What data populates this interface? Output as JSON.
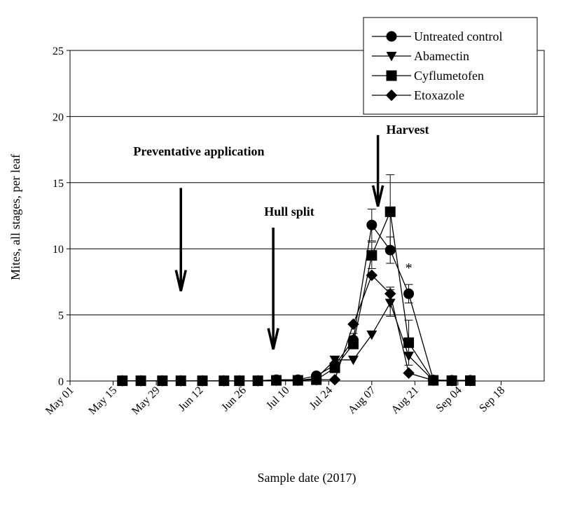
{
  "chart_data": {
    "type": "line",
    "xlabel": "Sample date (2017)",
    "ylabel": "Mites, all stages, per leaf",
    "ylim": [
      0,
      25
    ],
    "yticks": [
      0,
      5,
      10,
      15,
      20,
      25
    ],
    "xlim": [
      "2017-05-01",
      "2017-10-02"
    ],
    "xticks": [
      {
        "date": "2017-05-01",
        "label": "May 01"
      },
      {
        "date": "2017-05-15",
        "label": "May 15"
      },
      {
        "date": "2017-05-29",
        "label": "May 29"
      },
      {
        "date": "2017-06-12",
        "label": "Jun 12"
      },
      {
        "date": "2017-06-26",
        "label": "Jun 26"
      },
      {
        "date": "2017-07-10",
        "label": "Jul 10"
      },
      {
        "date": "2017-07-24",
        "label": "Jul 24"
      },
      {
        "date": "2017-08-07",
        "label": "Aug 07"
      },
      {
        "date": "2017-08-21",
        "label": "Aug 21"
      },
      {
        "date": "2017-09-04",
        "label": "Sep 04"
      },
      {
        "date": "2017-09-18",
        "label": "Sep 18"
      }
    ],
    "grid": "horizontal",
    "legend_position": "top-right",
    "series": [
      {
        "name": "Untreated control",
        "marker": "circle",
        "points": [
          {
            "x": "2017-05-18",
            "y": 0.02
          },
          {
            "x": "2017-05-24",
            "y": 0.02
          },
          {
            "x": "2017-05-31",
            "y": 0.02
          },
          {
            "x": "2017-06-06",
            "y": 0.02
          },
          {
            "x": "2017-06-13",
            "y": 0.02
          },
          {
            "x": "2017-06-20",
            "y": 0.02
          },
          {
            "x": "2017-06-25",
            "y": 0.02
          },
          {
            "x": "2017-07-01",
            "y": 0.02
          },
          {
            "x": "2017-07-07",
            "y": 0.1
          },
          {
            "x": "2017-07-14",
            "y": 0.1
          },
          {
            "x": "2017-07-20",
            "y": 0.4
          },
          {
            "x": "2017-07-26",
            "y": 1.2
          },
          {
            "x": "2017-08-01",
            "y": 3.1,
            "err": 0.5
          },
          {
            "x": "2017-08-07",
            "y": 11.8,
            "err": 1.2
          },
          {
            "x": "2017-08-13",
            "y": 9.9,
            "err": 1.0
          },
          {
            "x": "2017-08-19",
            "y": 6.6,
            "err": 0.7
          },
          {
            "x": "2017-08-27",
            "y": 0.08
          },
          {
            "x": "2017-09-02",
            "y": 0.05
          },
          {
            "x": "2017-09-08",
            "y": 0.05
          }
        ]
      },
      {
        "name": "Abamectin",
        "marker": "triangle-down",
        "points": [
          {
            "x": "2017-05-18",
            "y": 0.02
          },
          {
            "x": "2017-05-24",
            "y": 0.02
          },
          {
            "x": "2017-05-31",
            "y": 0.02
          },
          {
            "x": "2017-06-06",
            "y": 0.02
          },
          {
            "x": "2017-06-13",
            "y": 0.02
          },
          {
            "x": "2017-06-20",
            "y": 0.02
          },
          {
            "x": "2017-06-25",
            "y": 0.02
          },
          {
            "x": "2017-07-01",
            "y": 0.02
          },
          {
            "x": "2017-07-07",
            "y": 0.05
          },
          {
            "x": "2017-07-14",
            "y": 0.05
          },
          {
            "x": "2017-07-20",
            "y": 0.2
          },
          {
            "x": "2017-07-26",
            "y": 1.6
          },
          {
            "x": "2017-08-01",
            "y": 1.6
          },
          {
            "x": "2017-08-07",
            "y": 3.5
          },
          {
            "x": "2017-08-13",
            "y": 5.9,
            "err": 1.0
          },
          {
            "x": "2017-08-19",
            "y": 1.9
          },
          {
            "x": "2017-08-27",
            "y": 0.05
          },
          {
            "x": "2017-09-02",
            "y": 0.03
          },
          {
            "x": "2017-09-08",
            "y": 0.03
          }
        ]
      },
      {
        "name": "Cyflumetofen",
        "marker": "square",
        "points": [
          {
            "x": "2017-05-18",
            "y": 0.02
          },
          {
            "x": "2017-05-24",
            "y": 0.02
          },
          {
            "x": "2017-05-31",
            "y": 0.02
          },
          {
            "x": "2017-06-06",
            "y": 0.02
          },
          {
            "x": "2017-06-13",
            "y": 0.02
          },
          {
            "x": "2017-06-20",
            "y": 0.02
          },
          {
            "x": "2017-06-25",
            "y": 0.02
          },
          {
            "x": "2017-07-01",
            "y": 0.02
          },
          {
            "x": "2017-07-07",
            "y": 0.05
          },
          {
            "x": "2017-07-14",
            "y": 0.05
          },
          {
            "x": "2017-07-20",
            "y": 0.1
          },
          {
            "x": "2017-07-26",
            "y": 1.0
          },
          {
            "x": "2017-08-01",
            "y": 2.8
          },
          {
            "x": "2017-08-07",
            "y": 9.5,
            "err": 1.0
          },
          {
            "x": "2017-08-13",
            "y": 12.8,
            "err": 2.8
          },
          {
            "x": "2017-08-19",
            "y": 2.9,
            "err": 1.7
          },
          {
            "x": "2017-08-27",
            "y": 0.05
          },
          {
            "x": "2017-09-02",
            "y": 0.03
          },
          {
            "x": "2017-09-08",
            "y": 0.03
          }
        ]
      },
      {
        "name": "Etoxazole",
        "marker": "diamond",
        "points": [
          {
            "x": "2017-05-18",
            "y": 0.02
          },
          {
            "x": "2017-05-24",
            "y": 0.02
          },
          {
            "x": "2017-05-31",
            "y": 0.02
          },
          {
            "x": "2017-06-06",
            "y": 0.02
          },
          {
            "x": "2017-06-13",
            "y": 0.02
          },
          {
            "x": "2017-06-20",
            "y": 0.02
          },
          {
            "x": "2017-06-25",
            "y": 0.02
          },
          {
            "x": "2017-07-01",
            "y": 0.02
          },
          {
            "x": "2017-07-07",
            "y": 0.05
          },
          {
            "x": "2017-07-14",
            "y": 0.05
          },
          {
            "x": "2017-07-20",
            "y": 0.1
          },
          {
            "x": "2017-07-26",
            "y": 0.1
          },
          {
            "x": "2017-08-01",
            "y": 4.3
          },
          {
            "x": "2017-08-07",
            "y": 8.0
          },
          {
            "x": "2017-08-13",
            "y": 6.6,
            "err": 0.5
          },
          {
            "x": "2017-08-19",
            "y": 0.6
          },
          {
            "x": "2017-08-27",
            "y": 0.05
          },
          {
            "x": "2017-09-02",
            "y": 0.03
          },
          {
            "x": "2017-09-08",
            "y": 0.03
          }
        ]
      }
    ],
    "annotations": [
      {
        "text": "Preventative application",
        "arrow_date": "2017-06-06",
        "arrow_from": 14.6,
        "arrow_to": 6.8
      },
      {
        "text": "Hull split",
        "arrow_date": "2017-07-06",
        "arrow_from": 11.6,
        "arrow_to": 2.4
      },
      {
        "text": "Harvest",
        "arrow_date": "2017-08-09",
        "arrow_from": 18.6,
        "arrow_to": 13.2
      },
      {
        "text": "*",
        "x": "2017-08-19",
        "y": 8.2
      }
    ]
  }
}
